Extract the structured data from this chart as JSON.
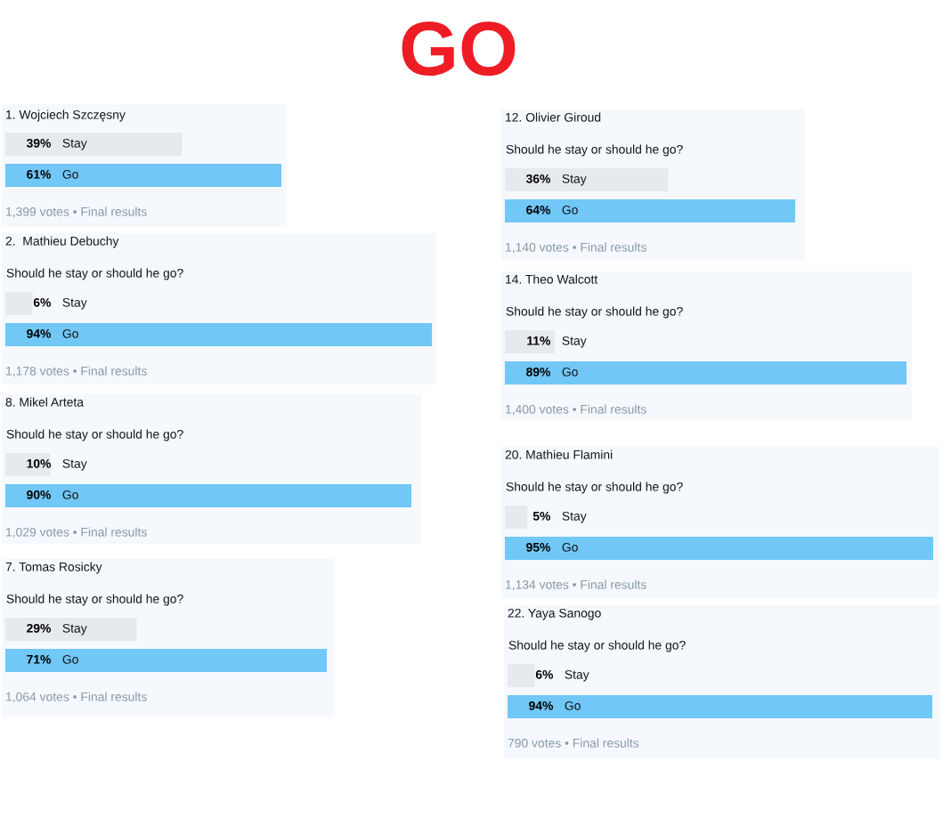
{
  "chart_data": [
    {
      "type": "other",
      "title": "GO",
      "color": "#ee1c24"
    },
    {
      "type": "bar",
      "orientation": "horizontal",
      "title": "1. Wojciech Szczęsny",
      "categories": [
        "Stay",
        "Go"
      ],
      "values": [
        39,
        61
      ],
      "value_labels": [
        "39%",
        "61%"
      ],
      "colors": [
        "#e6e9ee",
        "#71c7f6"
      ],
      "annotations": [
        "1,399 votes • Final results"
      ]
    },
    {
      "type": "bar",
      "orientation": "horizontal",
      "title": "2.  Mathieu Debuchy",
      "subtitle": "Should he stay or should he go?",
      "categories": [
        "Stay",
        "Go"
      ],
      "values": [
        6,
        94
      ],
      "value_labels": [
        "6%",
        "94%"
      ],
      "colors": [
        "#e6e9ee",
        "#71c7f6"
      ],
      "annotations": [
        "1,178 votes • Final results"
      ]
    },
    {
      "type": "bar",
      "orientation": "horizontal",
      "title": "8. Mikel Arteta",
      "subtitle": "Should he stay or should he go?",
      "categories": [
        "Stay",
        "Go"
      ],
      "values": [
        10,
        90
      ],
      "value_labels": [
        "10%",
        "90%"
      ],
      "colors": [
        "#e6e9ee",
        "#71c7f6"
      ],
      "annotations": [
        "1,029 votes • Final results"
      ]
    },
    {
      "type": "bar",
      "orientation": "horizontal",
      "title": "7. Tomas Rosicky",
      "subtitle": "Should he stay or should he go?",
      "categories": [
        "Stay",
        "Go"
      ],
      "values": [
        29,
        71
      ],
      "value_labels": [
        "29%",
        "71%"
      ],
      "colors": [
        "#e6e9ee",
        "#71c7f6"
      ],
      "annotations": [
        "1,064 votes • Final results"
      ]
    },
    {
      "type": "bar",
      "orientation": "horizontal",
      "title": "12. Olivier Giroud",
      "subtitle": "Should he stay or should he go?",
      "categories": [
        "Stay",
        "Go"
      ],
      "values": [
        36,
        64
      ],
      "value_labels": [
        "36%",
        "64%"
      ],
      "colors": [
        "#e6e9ee",
        "#71c7f6"
      ],
      "annotations": [
        "1,140 votes • Final results"
      ]
    },
    {
      "type": "bar",
      "orientation": "horizontal",
      "title": "14. Theo Walcott",
      "subtitle": "Should he stay or should he go?",
      "categories": [
        "Stay",
        "Go"
      ],
      "values": [
        11,
        89
      ],
      "value_labels": [
        "11%",
        "89%"
      ],
      "colors": [
        "#e6e9ee",
        "#71c7f6"
      ],
      "annotations": [
        "1,400 votes • Final results"
      ]
    },
    {
      "type": "bar",
      "orientation": "horizontal",
      "title": "20. Mathieu Flamini",
      "subtitle": "Should he stay or should he go?",
      "categories": [
        "Stay",
        "Go"
      ],
      "values": [
        5,
        95
      ],
      "value_labels": [
        "5%",
        "95%"
      ],
      "colors": [
        "#e6e9ee",
        "#71c7f6"
      ],
      "annotations": [
        "1,134 votes • Final results"
      ]
    },
    {
      "type": "bar",
      "orientation": "horizontal",
      "title": "22. Yaya Sanogo",
      "subtitle": "Should he stay or should he go?",
      "categories": [
        "Stay",
        "Go"
      ],
      "values": [
        6,
        94
      ],
      "value_labels": [
        "6%",
        "94%"
      ],
      "colors": [
        "#e6e9ee",
        "#71c7f6"
      ],
      "annotations": [
        "790 votes • Final results"
      ]
    }
  ]
}
